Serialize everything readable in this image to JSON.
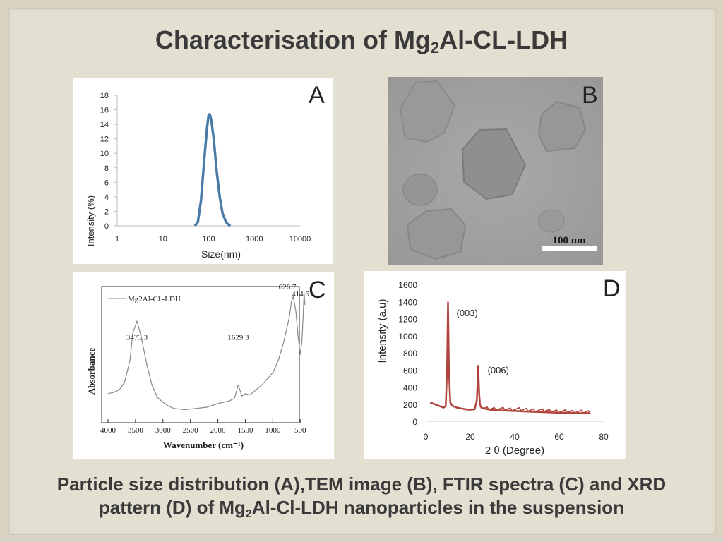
{
  "title": {
    "prefix": "Characterisation of Mg",
    "sub": "2",
    "suffix": "Al-CL-LDH"
  },
  "caption": {
    "line1": "Particle size distribution (A),TEM image (B), FTIR spectra (C) and XRD",
    "line2_prefix": "pattern (D) of Mg",
    "line2_sub": "2",
    "line2_suffix": "Al-Cl-LDH nanoparticles in the suspension"
  },
  "panels": {
    "a": "A",
    "b": "B",
    "c": "C",
    "d": "D"
  },
  "colors": {
    "dls_line": "#4a7ba7",
    "xrd_line": "#b0443d",
    "ftir_line": "#888888",
    "tem_bg": "#a3a3a3"
  },
  "chart_data": [
    {
      "type": "line",
      "panel": "A",
      "xlabel": "Size(nm)",
      "ylabel": "Intensity (%)",
      "xscale": "log",
      "xticks": [
        "1",
        "10",
        "100",
        "1000",
        "10000"
      ],
      "xtick_values": [
        1,
        10,
        100,
        1000,
        10000
      ],
      "ylim": [
        0,
        18
      ],
      "yticks": [
        "0",
        "2",
        "4",
        "6",
        "8",
        "10",
        "12",
        "14",
        "16",
        "18"
      ],
      "x": [
        50,
        58,
        68,
        80,
        92,
        100,
        106,
        115,
        130,
        150,
        175,
        200,
        240,
        280,
        300
      ],
      "y": [
        0,
        0.5,
        3.5,
        9,
        13.5,
        15.3,
        15.4,
        14.5,
        11.8,
        7.5,
        4,
        1.8,
        0.5,
        0.1,
        0
      ]
    },
    {
      "type": "line",
      "panel": "C",
      "xlabel": "Wavenumber (cm⁻¹)",
      "ylabel": "Absorbance",
      "legend": "Mg2Al-Cl -LDH",
      "xlim": [
        4000,
        400
      ],
      "xticks": [
        "4000",
        "3500",
        "3000",
        "2500",
        "2000",
        "1500",
        "1000",
        "500"
      ],
      "xtick_values": [
        4000,
        3500,
        3000,
        2500,
        2000,
        1500,
        1000,
        500
      ],
      "x": [
        4000,
        3900,
        3800,
        3700,
        3600,
        3550,
        3473,
        3400,
        3300,
        3200,
        3100,
        3000,
        2900,
        2800,
        2600,
        2400,
        2200,
        2000,
        1800,
        1700,
        1629,
        1560,
        1500,
        1420,
        1360,
        1200,
        1000,
        900,
        800,
        750,
        700,
        660,
        626.7,
        580,
        540,
        500,
        470,
        445,
        430,
        414.6
      ],
      "y": [
        0.13,
        0.14,
        0.16,
        0.22,
        0.4,
        0.62,
        0.72,
        0.6,
        0.38,
        0.2,
        0.1,
        0.06,
        0.03,
        0.01,
        0.0,
        0.01,
        0.02,
        0.05,
        0.07,
        0.09,
        0.2,
        0.11,
        0.13,
        0.12,
        0.14,
        0.2,
        0.3,
        0.4,
        0.55,
        0.65,
        0.75,
        0.88,
        0.92,
        0.8,
        0.6,
        0.45,
        0.55,
        0.78,
        0.95,
        0.85
      ],
      "annotations": [
        {
          "label": "3473.3",
          "x": 3473.3
        },
        {
          "label": "1629.3",
          "x": 1629.3
        },
        {
          "label": "626.7",
          "x": 626.7
        },
        {
          "label": "414.6",
          "x": 414.6
        }
      ]
    },
    {
      "type": "line",
      "panel": "D",
      "xlabel": "2 θ (Degree)",
      "ylabel": "Intensity (a.u)",
      "xlim": [
        0,
        80
      ],
      "xticks": [
        "0",
        "20",
        "40",
        "60",
        "80"
      ],
      "xtick_values": [
        0,
        20,
        40,
        60,
        80
      ],
      "ylim": [
        0,
        1600
      ],
      "yticks": [
        "0",
        "200",
        "400",
        "600",
        "800",
        "1000",
        "1200",
        "1400",
        "1600"
      ],
      "x": [
        2,
        4,
        6,
        8,
        9,
        9.6,
        10,
        10.4,
        11,
        12,
        14,
        16,
        18,
        20,
        22,
        23,
        23.6,
        24,
        24.4,
        25,
        26,
        28,
        30,
        35,
        40,
        45,
        50,
        55,
        60,
        65,
        70,
        74
      ],
      "y": [
        220,
        200,
        180,
        160,
        180,
        600,
        1390,
        600,
        220,
        180,
        160,
        150,
        140,
        135,
        140,
        250,
        650,
        330,
        190,
        160,
        150,
        140,
        130,
        125,
        120,
        115,
        110,
        105,
        100,
        100,
        95,
        95
      ],
      "annotations": [
        {
          "label": "(003)",
          "x": 10
        },
        {
          "label": "(006)",
          "x": 24
        }
      ]
    },
    {
      "type": "image",
      "panel": "B",
      "scale_label": "100 nm"
    }
  ]
}
